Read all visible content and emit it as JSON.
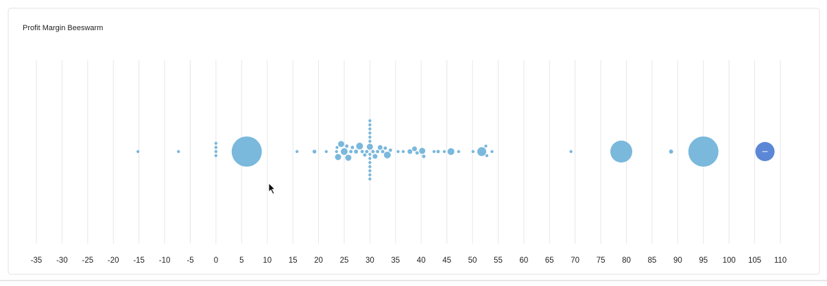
{
  "chart_data": {
    "type": "beeswarm",
    "title": "Profit Margin Beeswarm",
    "xlim": [
      -35,
      110
    ],
    "xticks": [
      -35,
      -30,
      -25,
      -20,
      -15,
      -10,
      -5,
      0,
      5,
      10,
      15,
      20,
      25,
      30,
      35,
      40,
      45,
      50,
      55,
      60,
      65,
      70,
      75,
      80,
      85,
      90,
      95,
      100,
      105,
      110
    ],
    "grid": true,
    "series": [
      {
        "color": "#7ab8dc",
        "x": [
          -15.2,
          -7.3,
          0,
          0,
          0,
          0,
          6,
          15.8,
          19.2,
          21.5,
          23.5,
          23.6,
          23.8,
          24.4,
          25,
          25.5,
          25.8,
          26.3,
          26.6,
          27.3,
          28,
          28.5,
          29,
          29.4,
          30,
          30,
          30,
          30,
          30,
          30,
          30,
          30,
          30,
          30,
          30,
          30,
          30,
          30,
          30.6,
          31,
          31.5,
          32,
          32.5,
          33,
          33.4,
          34,
          35.5,
          36.5,
          37.8,
          38.7,
          39.2,
          40.2,
          40.5,
          42.5,
          43.3,
          44.5,
          45.8,
          47.3,
          50.1,
          51.8,
          52.6,
          52.8,
          53.8,
          69.2,
          79,
          88.7,
          95
        ],
        "sizes": [
          2.2,
          2.2,
          2.2,
          2.2,
          2.2,
          2.2,
          22,
          2.2,
          2.8,
          2.2,
          2.2,
          2.2,
          4.5,
          4.5,
          5,
          2.5,
          4.5,
          2.5,
          2.5,
          3,
          5,
          2.5,
          2.5,
          2.5,
          4.5,
          2.2,
          2.2,
          2.2,
          2.2,
          2.2,
          2.2,
          2.2,
          2.2,
          2.2,
          2.2,
          2.2,
          2.2,
          2.2,
          2.5,
          3.5,
          2.5,
          3.5,
          2.5,
          2.5,
          5,
          2.5,
          2.2,
          2.2,
          3.5,
          3.5,
          2.5,
          4.5,
          2.5,
          2.2,
          2.5,
          2.2,
          5,
          2.2,
          2.2,
          6.5,
          2.2,
          2.2,
          2.2,
          2.2,
          16,
          3,
          22
        ]
      },
      {
        "color": "#5b87d6",
        "x": [
          107
        ],
        "sizes": [
          14
        ]
      }
    ]
  }
}
